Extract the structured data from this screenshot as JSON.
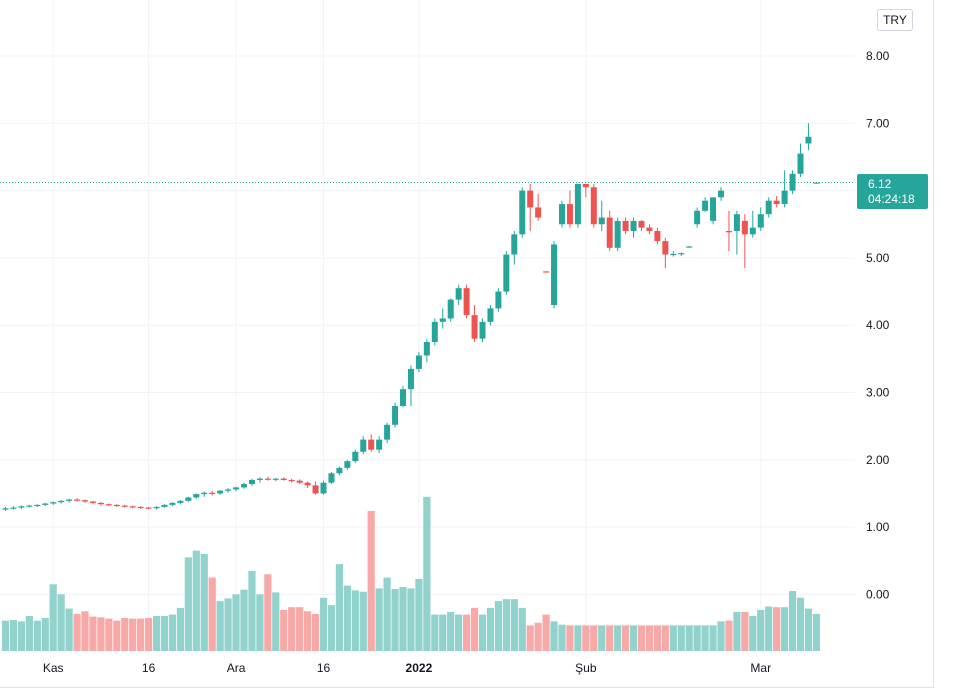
{
  "currency": "TRY",
  "last_price": {
    "value": "6.12",
    "countdown": "04:24:18"
  },
  "colors": {
    "up": "#26a69a",
    "down": "#ef5350",
    "vol_up": "#92d2cc",
    "vol_down": "#f7a9a7",
    "grid": "#f0f3fa",
    "last_line": "#26a69a"
  },
  "chart_data": {
    "type": "candlestick",
    "y_axis": {
      "min": -0.5,
      "max": 8.5,
      "ticks": [
        "8.00",
        "7.00",
        "6.00",
        "5.00",
        "4.00",
        "3.00",
        "2.00",
        "1.00",
        "0.00"
      ],
      "side": "right"
    },
    "x_axis": {
      "labels": [
        {
          "text": "Kas",
          "index": 6,
          "bold": false
        },
        {
          "text": "16",
          "index": 18,
          "bold": false
        },
        {
          "text": "Ara",
          "index": 29,
          "bold": false
        },
        {
          "text": "16",
          "index": 40,
          "bold": false
        },
        {
          "text": "2022",
          "index": 52,
          "bold": true
        },
        {
          "text": "Şub",
          "index": 73,
          "bold": false
        },
        {
          "text": "Mar",
          "index": 95,
          "bold": false
        }
      ]
    },
    "ohlc": [
      [
        1.26,
        1.3,
        1.24,
        1.28
      ],
      [
        1.28,
        1.31,
        1.26,
        1.29
      ],
      [
        1.29,
        1.32,
        1.27,
        1.31
      ],
      [
        1.31,
        1.33,
        1.29,
        1.32
      ],
      [
        1.32,
        1.34,
        1.3,
        1.33
      ],
      [
        1.33,
        1.36,
        1.31,
        1.35
      ],
      [
        1.35,
        1.38,
        1.33,
        1.37
      ],
      [
        1.37,
        1.4,
        1.35,
        1.39
      ],
      [
        1.39,
        1.42,
        1.36,
        1.41
      ],
      [
        1.41,
        1.43,
        1.38,
        1.4
      ],
      [
        1.4,
        1.41,
        1.36,
        1.38
      ],
      [
        1.38,
        1.39,
        1.34,
        1.36
      ],
      [
        1.36,
        1.37,
        1.32,
        1.34
      ],
      [
        1.34,
        1.35,
        1.31,
        1.33
      ],
      [
        1.33,
        1.34,
        1.3,
        1.32
      ],
      [
        1.32,
        1.33,
        1.29,
        1.31
      ],
      [
        1.31,
        1.32,
        1.28,
        1.3
      ],
      [
        1.3,
        1.31,
        1.27,
        1.29
      ],
      [
        1.29,
        1.3,
        1.27,
        1.28
      ],
      [
        1.28,
        1.31,
        1.26,
        1.3
      ],
      [
        1.3,
        1.34,
        1.29,
        1.33
      ],
      [
        1.33,
        1.37,
        1.31,
        1.36
      ],
      [
        1.36,
        1.4,
        1.34,
        1.39
      ],
      [
        1.39,
        1.45,
        1.37,
        1.44
      ],
      [
        1.44,
        1.5,
        1.42,
        1.49
      ],
      [
        1.49,
        1.53,
        1.45,
        1.51
      ],
      [
        1.51,
        1.54,
        1.47,
        1.5
      ],
      [
        1.5,
        1.55,
        1.48,
        1.54
      ],
      [
        1.54,
        1.58,
        1.51,
        1.56
      ],
      [
        1.56,
        1.6,
        1.53,
        1.59
      ],
      [
        1.59,
        1.66,
        1.57,
        1.64
      ],
      [
        1.64,
        1.72,
        1.61,
        1.7
      ],
      [
        1.7,
        1.74,
        1.66,
        1.72
      ],
      [
        1.72,
        1.75,
        1.69,
        1.71
      ],
      [
        1.71,
        1.73,
        1.68,
        1.72
      ],
      [
        1.72,
        1.74,
        1.69,
        1.7
      ],
      [
        1.7,
        1.72,
        1.66,
        1.69
      ],
      [
        1.69,
        1.71,
        1.64,
        1.66
      ],
      [
        1.66,
        1.68,
        1.58,
        1.62
      ],
      [
        1.62,
        1.68,
        1.48,
        1.5
      ],
      [
        1.5,
        1.69,
        1.48,
        1.66
      ],
      [
        1.66,
        1.82,
        1.64,
        1.8
      ],
      [
        1.8,
        1.9,
        1.77,
        1.88
      ],
      [
        1.88,
        2.0,
        1.85,
        1.98
      ],
      [
        1.98,
        2.15,
        1.95,
        2.12
      ],
      [
        2.12,
        2.35,
        2.08,
        2.3
      ],
      [
        2.3,
        2.38,
        2.12,
        2.15
      ],
      [
        2.15,
        2.35,
        2.1,
        2.3
      ],
      [
        2.3,
        2.55,
        2.25,
        2.52
      ],
      [
        2.52,
        2.85,
        2.48,
        2.8
      ],
      [
        2.8,
        3.1,
        2.78,
        3.05
      ],
      [
        3.05,
        3.4,
        2.8,
        3.35
      ],
      [
        3.35,
        3.6,
        3.3,
        3.55
      ],
      [
        3.55,
        3.8,
        3.45,
        3.75
      ],
      [
        3.75,
        4.1,
        3.7,
        4.05
      ],
      [
        4.05,
        4.25,
        3.95,
        4.1
      ],
      [
        4.1,
        4.4,
        4.05,
        4.38
      ],
      [
        4.38,
        4.6,
        4.3,
        4.55
      ],
      [
        4.55,
        4.6,
        4.1,
        4.15
      ],
      [
        4.15,
        4.3,
        3.75,
        3.8
      ],
      [
        3.8,
        4.1,
        3.75,
        4.05
      ],
      [
        4.05,
        4.3,
        4.0,
        4.25
      ],
      [
        4.25,
        4.55,
        4.2,
        4.5
      ],
      [
        4.5,
        5.1,
        4.45,
        5.05
      ],
      [
        5.05,
        5.4,
        4.9,
        5.35
      ],
      [
        5.35,
        6.05,
        5.3,
        6.0
      ],
      [
        6.0,
        6.1,
        5.4,
        5.75
      ],
      [
        5.75,
        5.95,
        5.55,
        5.6
      ],
      [
        4.8,
        4.8,
        4.78,
        4.79
      ],
      [
        4.3,
        5.25,
        4.25,
        5.2
      ],
      [
        5.5,
        5.85,
        5.45,
        5.8
      ],
      [
        5.8,
        6.0,
        5.45,
        5.5
      ],
      [
        5.5,
        6.1,
        5.45,
        6.1
      ],
      [
        6.1,
        6.1,
        5.9,
        6.05
      ],
      [
        6.05,
        6.1,
        5.45,
        5.5
      ],
      [
        5.5,
        5.85,
        5.4,
        5.6
      ],
      [
        5.6,
        5.7,
        5.1,
        5.15
      ],
      [
        5.15,
        5.6,
        5.1,
        5.55
      ],
      [
        5.55,
        5.6,
        5.35,
        5.4
      ],
      [
        5.4,
        5.6,
        5.3,
        5.55
      ],
      [
        5.55,
        5.56,
        5.4,
        5.45
      ],
      [
        5.45,
        5.5,
        5.35,
        5.4
      ],
      [
        5.4,
        5.45,
        5.2,
        5.25
      ],
      [
        5.25,
        5.3,
        4.85,
        5.05
      ],
      [
        5.05,
        5.1,
        5.02,
        5.06
      ],
      [
        5.06,
        5.08,
        5.03,
        5.07
      ],
      [
        5.17,
        5.18,
        5.16,
        5.17
      ],
      [
        5.5,
        5.75,
        5.45,
        5.7
      ],
      [
        5.7,
        5.9,
        5.68,
        5.85
      ],
      [
        5.55,
        5.9,
        5.5,
        5.9
      ],
      [
        5.9,
        6.05,
        5.85,
        6.0
      ],
      [
        5.4,
        5.7,
        5.1,
        5.38
      ],
      [
        5.4,
        5.7,
        5.05,
        5.65
      ],
      [
        5.55,
        5.65,
        4.85,
        5.35
      ],
      [
        5.35,
        5.7,
        5.3,
        5.45
      ],
      [
        5.45,
        5.75,
        5.4,
        5.65
      ],
      [
        5.65,
        5.9,
        5.6,
        5.85
      ],
      [
        5.85,
        5.92,
        5.75,
        5.8
      ],
      [
        5.8,
        6.3,
        5.75,
        6.0
      ],
      [
        6.0,
        6.3,
        5.95,
        6.25
      ],
      [
        6.25,
        6.7,
        6.2,
        6.55
      ],
      [
        6.7,
        7.0,
        6.6,
        6.8
      ],
      [
        6.12,
        6.13,
        6.11,
        6.12
      ]
    ],
    "volume": [
      0.11,
      0.12,
      0.1,
      0.18,
      0.11,
      0.15,
      0.65,
      0.5,
      0.29,
      0.21,
      0.25,
      0.17,
      0.16,
      0.14,
      0.11,
      0.15,
      0.14,
      0.14,
      0.15,
      0.18,
      0.18,
      0.2,
      0.3,
      1.05,
      1.15,
      1.1,
      0.75,
      0.4,
      0.44,
      0.5,
      0.57,
      0.85,
      0.5,
      0.8,
      0.53,
      0.27,
      0.31,
      0.31,
      0.25,
      0.21,
      0.45,
      0.34,
      0.95,
      0.63,
      0.56,
      0.54,
      1.74,
      0.59,
      0.75,
      0.58,
      0.61,
      0.59,
      0.73,
      1.95,
      0.2,
      0.2,
      0.24,
      0.2,
      0.2,
      0.3,
      0.2,
      0.3,
      0.4,
      0.43,
      0.43,
      0.3,
      0.04,
      0.08,
      0.2,
      0.1,
      0.05,
      0.04,
      0.04,
      0.04,
      0.04,
      0.04,
      0.04,
      0.04,
      0.04,
      0.04,
      0.04,
      0.04,
      0.04,
      0.04,
      0.04,
      0.04,
      0.04,
      0.04,
      0.04,
      0.04,
      0.1,
      0.11,
      0.24,
      0.24,
      0.18,
      0.27,
      0.32,
      0.31,
      0.31,
      0.55,
      0.45,
      0.29,
      0.21,
      0.03
    ]
  }
}
